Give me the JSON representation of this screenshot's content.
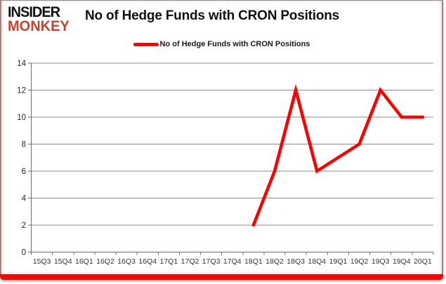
{
  "logo": {
    "line1": "INSIDER",
    "line2": "MONKEY"
  },
  "header": {
    "title": "No of Hedge Funds with CRON Positions"
  },
  "legend": {
    "label": "No of Hedge Funds with CRON Positions"
  },
  "colors": {
    "series": "#fe0000",
    "logo_accent": "#c8432f",
    "gridline": "#898989",
    "axis": "#6e6e6e",
    "y_tick_label": "#262626",
    "x_tick_label": "#333333",
    "bottom_bar": "#fe0000"
  },
  "chart_data": {
    "type": "line",
    "title": "No of Hedge Funds with CRON Positions",
    "categories": [
      "15Q3",
      "15Q4",
      "16Q1",
      "16Q2",
      "16Q3",
      "16Q4",
      "17Q1",
      "17Q2",
      "17Q3",
      "17Q4",
      "18Q1",
      "18Q2",
      "18Q3",
      "18Q4",
      "19Q1",
      "19Q2",
      "19Q3",
      "19Q4",
      "20Q1"
    ],
    "series": [
      {
        "name": "No of Hedge Funds with CRON Positions",
        "color": "#fe0000",
        "values": [
          null,
          null,
          null,
          null,
          null,
          null,
          null,
          null,
          null,
          null,
          2,
          6,
          12,
          6,
          7,
          8,
          12,
          10,
          10
        ]
      }
    ],
    "xlabel": "",
    "ylabel": "",
    "ylim": [
      0,
      14
    ],
    "yticks": [
      0,
      2,
      4,
      6,
      8,
      10,
      12,
      14
    ],
    "grid": true,
    "legend_position": "top-center"
  }
}
